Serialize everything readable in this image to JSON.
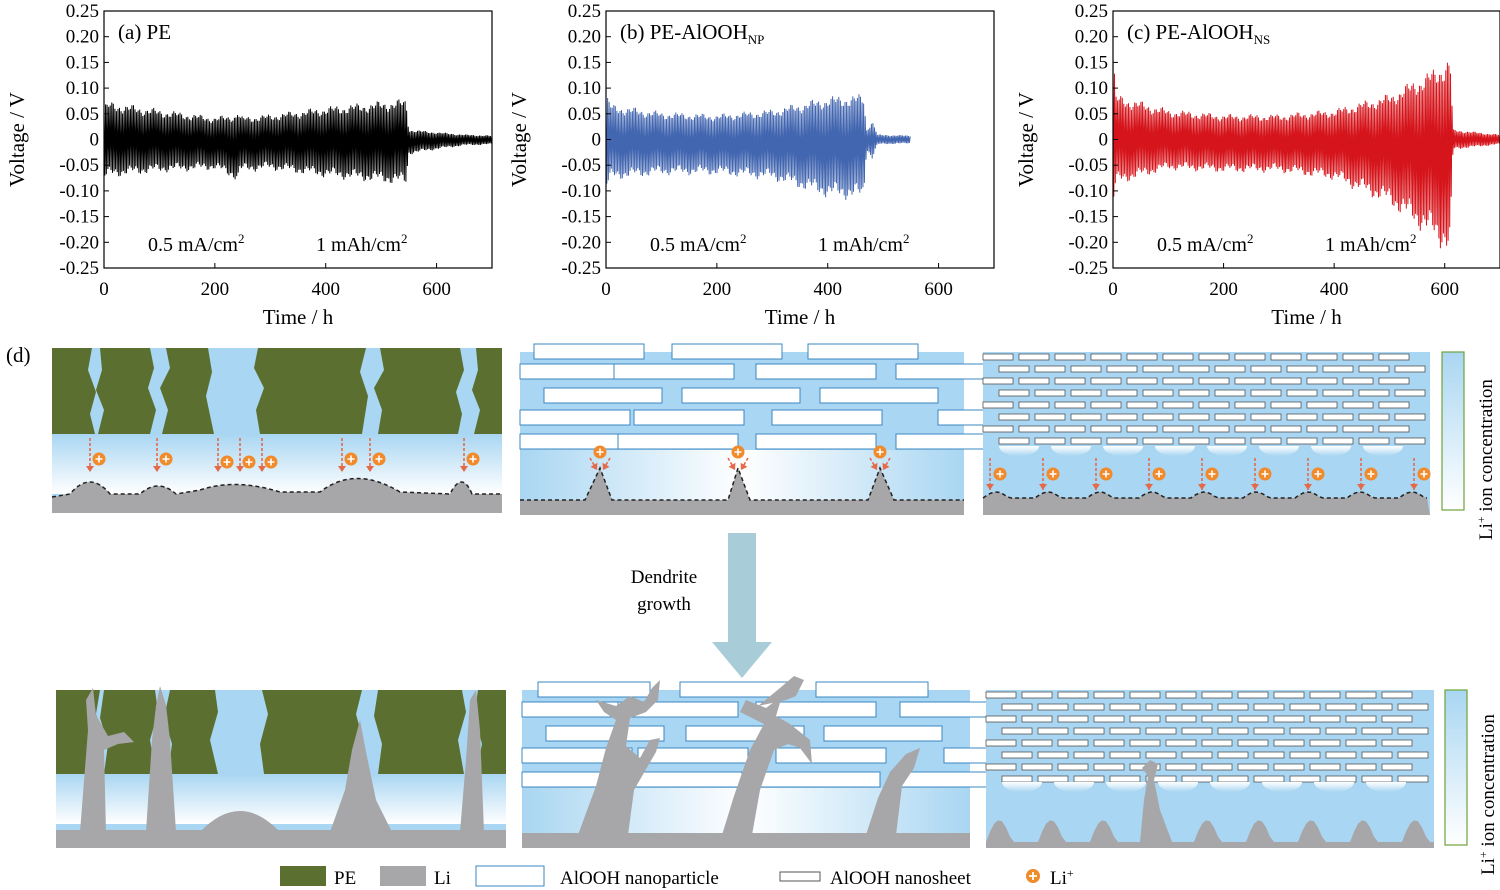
{
  "colors": {
    "pe": "#5b7030",
    "li": "#a7a6a8",
    "electrolyte": "#a9d6f2",
    "electrolyte_light": "#e9f6fd",
    "plate_stroke": "#3a87c0",
    "liion_fill": "#f08a2a",
    "arrow": "#e46a4a",
    "big_arrow": "#a9ccd9",
    "gauge_border": "#6ea33b",
    "series_a": "#000000",
    "series_b": "#4366b0",
    "series_c": "#d5141b"
  },
  "chart_data": [
    {
      "type": "line",
      "panel": "(a)",
      "title": "PE",
      "title_sub": "",
      "xlabel": "Time / h",
      "ylabel": "Voltage / V",
      "xlim": [
        0,
        700
      ],
      "ylim": [
        -0.25,
        0.25
      ],
      "xticks": [
        0,
        200,
        400,
        600
      ],
      "yticks": [
        0.25,
        0.2,
        0.15,
        0.1,
        0.05,
        0,
        -0.05,
        -0.1,
        -0.15,
        -0.2,
        -0.25
      ],
      "ytick_labels": [
        "0.25",
        "0.20",
        "0.15",
        "0.10",
        "0.05",
        "0",
        "-0.05",
        "-0.10",
        "-0.15",
        "-0.20",
        "-0.25"
      ],
      "annotation_current": "0.5 mA/cm",
      "annotation_capacity": "1 mAh/cm",
      "annotation_sup": "2",
      "series": [
        {
          "color": "#000000",
          "end": 700,
          "envelope": [
            [
              0,
              0.07
            ],
            [
              10,
              0.075
            ],
            [
              100,
              0.06
            ],
            [
              200,
              0.045
            ],
            [
              238,
              0.05
            ],
            [
              242,
              0.065
            ],
            [
              245,
              0.045
            ],
            [
              300,
              0.05
            ],
            [
              400,
              0.065
            ],
            [
              540,
              0.08
            ],
            [
              545,
              0.08
            ],
            [
              550,
              0.02
            ],
            [
              600,
              0.015
            ],
            [
              650,
              0.01
            ],
            [
              700,
              0.008
            ]
          ],
          "envelope_low": [
            [
              0,
              -0.08
            ],
            [
              10,
              -0.075
            ],
            [
              100,
              -0.065
            ],
            [
              200,
              -0.06
            ],
            [
              238,
              -0.08
            ],
            [
              242,
              -0.085
            ],
            [
              245,
              -0.065
            ],
            [
              300,
              -0.06
            ],
            [
              400,
              -0.075
            ],
            [
              540,
              -0.09
            ],
            [
              545,
              -0.09
            ],
            [
              550,
              -0.03
            ],
            [
              600,
              -0.02
            ],
            [
              650,
              -0.012
            ],
            [
              700,
              -0.01
            ]
          ]
        }
      ]
    },
    {
      "type": "line",
      "panel": "(b)",
      "title": "PE-AlOOH",
      "title_sub": "NP",
      "xlabel": "Time / h",
      "ylabel": "Voltage / V",
      "xlim": [
        0,
        700
      ],
      "ylim": [
        -0.25,
        0.25
      ],
      "xticks": [
        0,
        200,
        400,
        600
      ],
      "yticks": [
        0.25,
        0.2,
        0.15,
        0.1,
        0.05,
        0,
        -0.05,
        -0.1,
        -0.15,
        -0.2,
        -0.25
      ],
      "ytick_labels": [
        "0.25",
        "0.20",
        "0.15",
        "0.10",
        "0.05",
        "0",
        "-0.05",
        "-0.10",
        "-0.15",
        "-0.20",
        "-0.25"
      ],
      "annotation_current": "0.5 mA/cm",
      "annotation_capacity": "1 mAh/cm",
      "annotation_sup": "2",
      "series": [
        {
          "color": "#4366b0",
          "end": 550,
          "envelope": [
            [
              0,
              0.09
            ],
            [
              10,
              0.07
            ],
            [
              100,
              0.055
            ],
            [
              200,
              0.05
            ],
            [
              300,
              0.06
            ],
            [
              400,
              0.085
            ],
            [
              465,
              0.09
            ],
            [
              470,
              0.02
            ],
            [
              480,
              0.04
            ],
            [
              490,
              0.01
            ],
            [
              550,
              0.008
            ]
          ],
          "envelope_low": [
            [
              0,
              -0.1
            ],
            [
              10,
              -0.08
            ],
            [
              100,
              -0.07
            ],
            [
              200,
              -0.07
            ],
            [
              300,
              -0.08
            ],
            [
              400,
              -0.115
            ],
            [
              465,
              -0.12
            ],
            [
              470,
              -0.02
            ],
            [
              480,
              -0.04
            ],
            [
              490,
              -0.01
            ],
            [
              550,
              -0.008
            ]
          ]
        }
      ]
    },
    {
      "type": "line",
      "panel": "(c)",
      "title": "PE-AlOOH",
      "title_sub": "NS",
      "xlabel": "Time / h",
      "ylabel": "Voltage / V",
      "xlim": [
        0,
        700
      ],
      "ylim": [
        -0.25,
        0.25
      ],
      "xticks": [
        0,
        200,
        400,
        600
      ],
      "yticks": [
        0.25,
        0.2,
        0.15,
        0.1,
        0.05,
        0,
        -0.05,
        -0.1,
        -0.15,
        -0.2,
        -0.25
      ],
      "ytick_labels": [
        "0.25",
        "0.20",
        "0.15",
        "0.10",
        "0.05",
        "0",
        "-0.05",
        "-0.10",
        "-0.15",
        "-0.20",
        "-0.25"
      ],
      "annotation_current": "0.5 mA/cm",
      "annotation_capacity": "1 mAh/cm",
      "annotation_sup": "2",
      "series": [
        {
          "color": "#d5141b",
          "end": 700,
          "envelope": [
            [
              0,
              0.19
            ],
            [
              5,
              0.09
            ],
            [
              100,
              0.06
            ],
            [
              200,
              0.05
            ],
            [
              300,
              0.05
            ],
            [
              400,
              0.06
            ],
            [
              500,
              0.09
            ],
            [
              580,
              0.14
            ],
            [
              610,
              0.165
            ],
            [
              615,
              0.02
            ],
            [
              700,
              0.01
            ]
          ],
          "envelope_low": [
            [
              0,
              -0.14
            ],
            [
              5,
              -0.09
            ],
            [
              100,
              -0.06
            ],
            [
              200,
              -0.065
            ],
            [
              300,
              -0.065
            ],
            [
              400,
              -0.08
            ],
            [
              500,
              -0.13
            ],
            [
              580,
              -0.2
            ],
            [
              610,
              -0.23
            ],
            [
              615,
              -0.02
            ],
            [
              700,
              -0.01
            ]
          ]
        }
      ]
    }
  ],
  "schematic": {
    "panel_label": "(d)",
    "arrow_label_line1": "Dendrite",
    "arrow_label_line2": "growth",
    "gauge_label": "Li",
    "gauge_label_sup": "+",
    "gauge_label_rest": " ion concentration",
    "legend": [
      {
        "key": "pe",
        "label": "PE"
      },
      {
        "key": "li",
        "label": "Li"
      },
      {
        "key": "np",
        "label": "AlOOH nanoparticle"
      },
      {
        "key": "ns",
        "label": "AlOOH nanosheet"
      },
      {
        "key": "liion",
        "label": "Li",
        "sup": "+"
      }
    ]
  }
}
